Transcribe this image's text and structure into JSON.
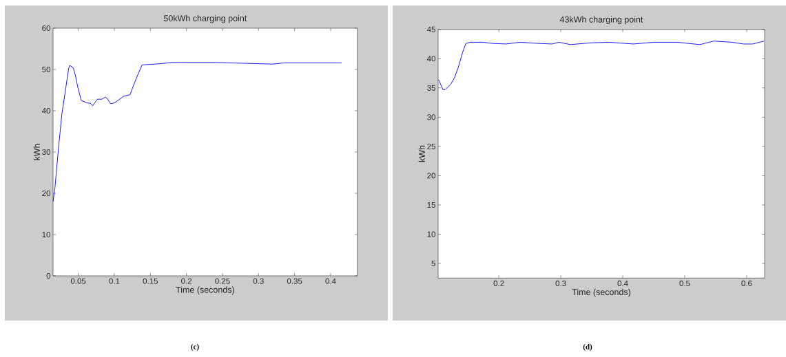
{
  "chart_data": [
    {
      "type": "line",
      "title": "50kWh charging point",
      "xlabel": "Time (seconds)",
      "ylabel": "kWh",
      "color": "#0000ff",
      "marker": "none",
      "line_style": "solid",
      "xlim": [
        0.015,
        0.437
      ],
      "ylim": [
        0,
        60
      ],
      "xticks": [
        0.05,
        0.1,
        0.15,
        0.2,
        0.25,
        0.3,
        0.35,
        0.4
      ],
      "yticks": [
        0,
        10,
        20,
        30,
        40,
        50,
        60
      ],
      "annotations": [
        "(c)"
      ],
      "x": [
        0.015,
        0.0176,
        0.0224,
        0.0271,
        0.0319,
        0.0366,
        0.0382,
        0.043,
        0.0461,
        0.0493,
        0.0541,
        0.062,
        0.0668,
        0.07,
        0.0764,
        0.0827,
        0.0875,
        0.0907,
        0.0948,
        0.1002,
        0.1066,
        0.1129,
        0.1218,
        0.1256,
        0.132,
        0.1384,
        0.1638,
        0.1797,
        0.218,
        0.24,
        0.3198,
        0.3356,
        0.3833,
        0.4152
      ],
      "values": [
        18,
        21.3,
        30.7,
        39,
        44.6,
        50.2,
        51,
        50.4,
        48.5,
        45.7,
        42.5,
        41.9,
        41.8,
        41.2,
        42.8,
        42.8,
        43.3,
        42.8,
        41.7,
        41.9,
        42.7,
        43.5,
        43.9,
        45.7,
        48.5,
        51.1,
        51.4,
        51.7,
        51.7,
        51.7,
        51.3,
        51.6,
        51.6,
        51.6
      ]
    },
    {
      "type": "line",
      "title": "43kWh charging point",
      "xlabel": "Time (seconds)",
      "ylabel": "kWh",
      "color": "#0000ff",
      "marker": "none",
      "line_style": "solid",
      "xlim": [
        0.102,
        0.629
      ],
      "ylim": [
        2.5,
        45
      ],
      "xticks": [
        0.2,
        0.3,
        0.4,
        0.5,
        0.6
      ],
      "yticks": [
        5,
        10,
        15,
        20,
        25,
        30,
        35,
        40,
        45
      ],
      "annotations": [
        "(d)"
      ],
      "x": [
        0.1027,
        0.104,
        0.1098,
        0.1135,
        0.1228,
        0.1283,
        0.1339,
        0.1413,
        0.1468,
        0.1542,
        0.1746,
        0.1894,
        0.2117,
        0.2339,
        0.2635,
        0.2857,
        0.2969,
        0.3154,
        0.3487,
        0.377,
        0.4171,
        0.4504,
        0.4874,
        0.5244,
        0.5467,
        0.5763,
        0.5948,
        0.6096,
        0.6281
      ],
      "values": [
        36.4,
        36.1,
        34.7,
        34.7,
        35.7,
        36.7,
        38.3,
        41,
        42.6,
        42.8,
        42.8,
        42.6,
        42.5,
        42.8,
        42.6,
        42.5,
        42.8,
        42.4,
        42.7,
        42.8,
        42.5,
        42.8,
        42.8,
        42.4,
        43,
        42.8,
        42.5,
        42.5,
        43
      ]
    }
  ]
}
